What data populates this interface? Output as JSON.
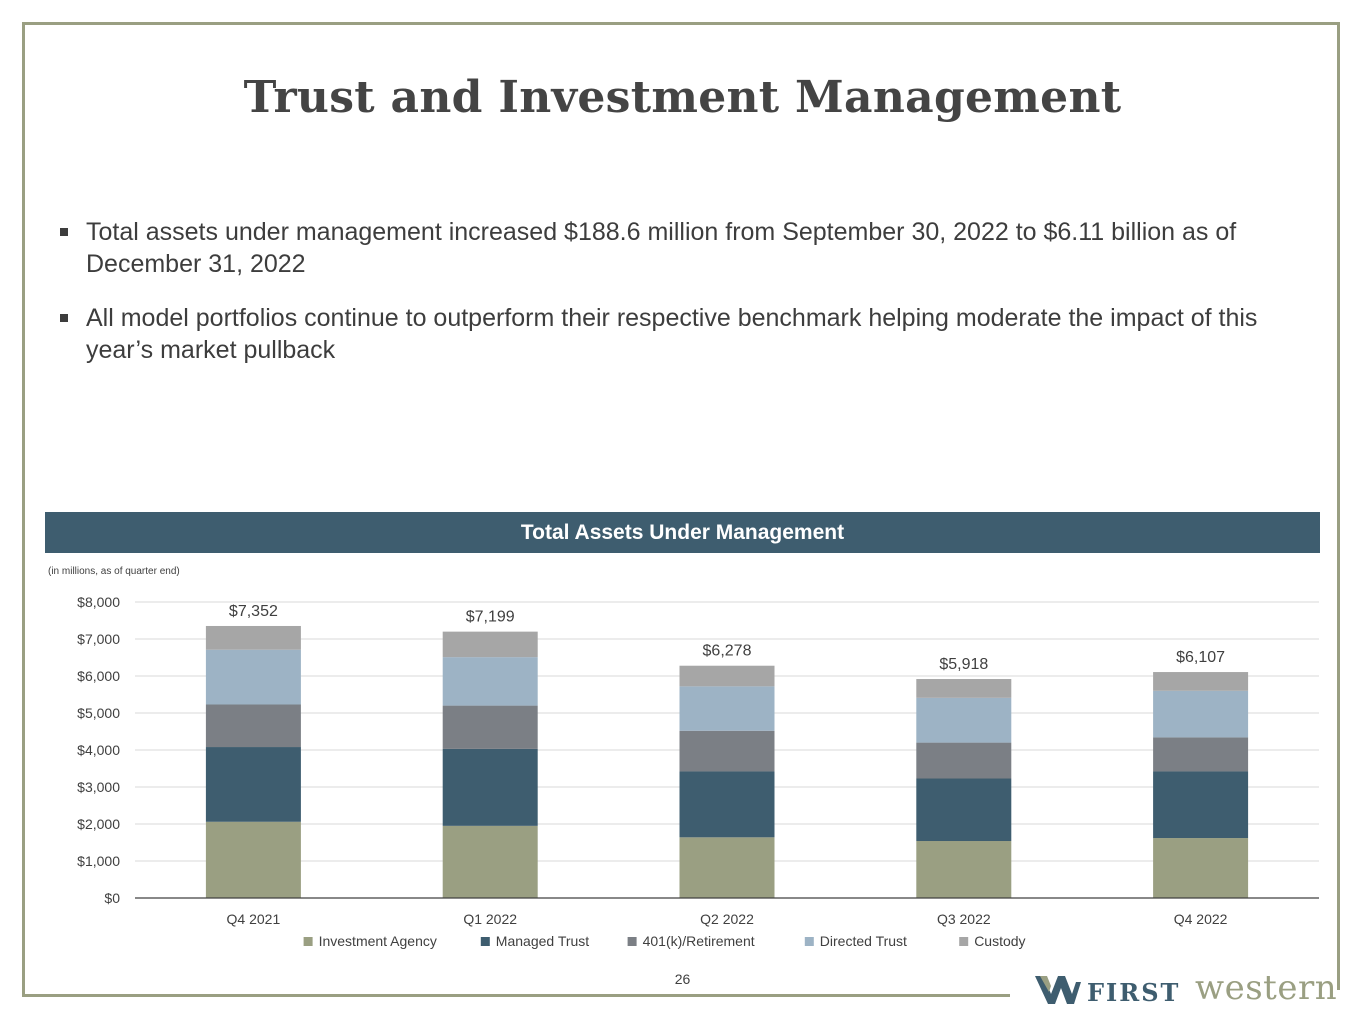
{
  "page": {
    "title": "Trust and Investment Management",
    "bullets": [
      "Total assets under management increased $188.6 million from September 30, 2022 to $6.11 billion as of December 31, 2022",
      "All model portfolios continue to outperform their respective benchmark helping moderate the impact of this year’s market pullback"
    ],
    "page_number": "26",
    "logo": {
      "word1": "FIRST",
      "word2": "western"
    }
  },
  "colors": {
    "frame": "#9a9f82",
    "header_bg": "#3e5d6f"
  },
  "chart_data": {
    "type": "bar",
    "stacked": true,
    "title": "Total Assets Under Management",
    "subtitle": "(in millions, as of quarter end)",
    "categories": [
      "Q4 2021",
      "Q1 2022",
      "Q2 2022",
      "Q3 2022",
      "Q4 2022"
    ],
    "totals": [
      7352,
      7199,
      6278,
      5918,
      6107
    ],
    "total_labels": [
      "$7,352",
      "$7,199",
      "$6,278",
      "$5,918",
      "$6,107"
    ],
    "ylim": [
      0,
      8000
    ],
    "yticks": [
      0,
      1000,
      2000,
      3000,
      4000,
      5000,
      6000,
      7000,
      8000
    ],
    "ytick_labels": [
      "$0",
      "$1,000",
      "$2,000",
      "$3,000",
      "$4,000",
      "$5,000",
      "$6,000",
      "$7,000",
      "$8,000"
    ],
    "grid": true,
    "legend_position": "bottom",
    "series": [
      {
        "name": "Investment Agency",
        "color": "#9a9f82",
        "values": [
          2060,
          1950,
          1640,
          1540,
          1620
        ]
      },
      {
        "name": "Managed Trust",
        "color": "#3e5d6f",
        "values": [
          2020,
          2080,
          1780,
          1690,
          1800
        ]
      },
      {
        "name": "401(k)/Retirement",
        "color": "#7b7f85",
        "values": [
          1150,
          1170,
          1100,
          970,
          920
        ]
      },
      {
        "name": "Directed Trust",
        "color": "#9db3c5",
        "values": [
          1480,
          1310,
          1200,
          1210,
          1260
        ]
      },
      {
        "name": "Custody",
        "color": "#a6a6a6",
        "values": [
          642,
          689,
          558,
          508,
          507
        ]
      }
    ]
  }
}
